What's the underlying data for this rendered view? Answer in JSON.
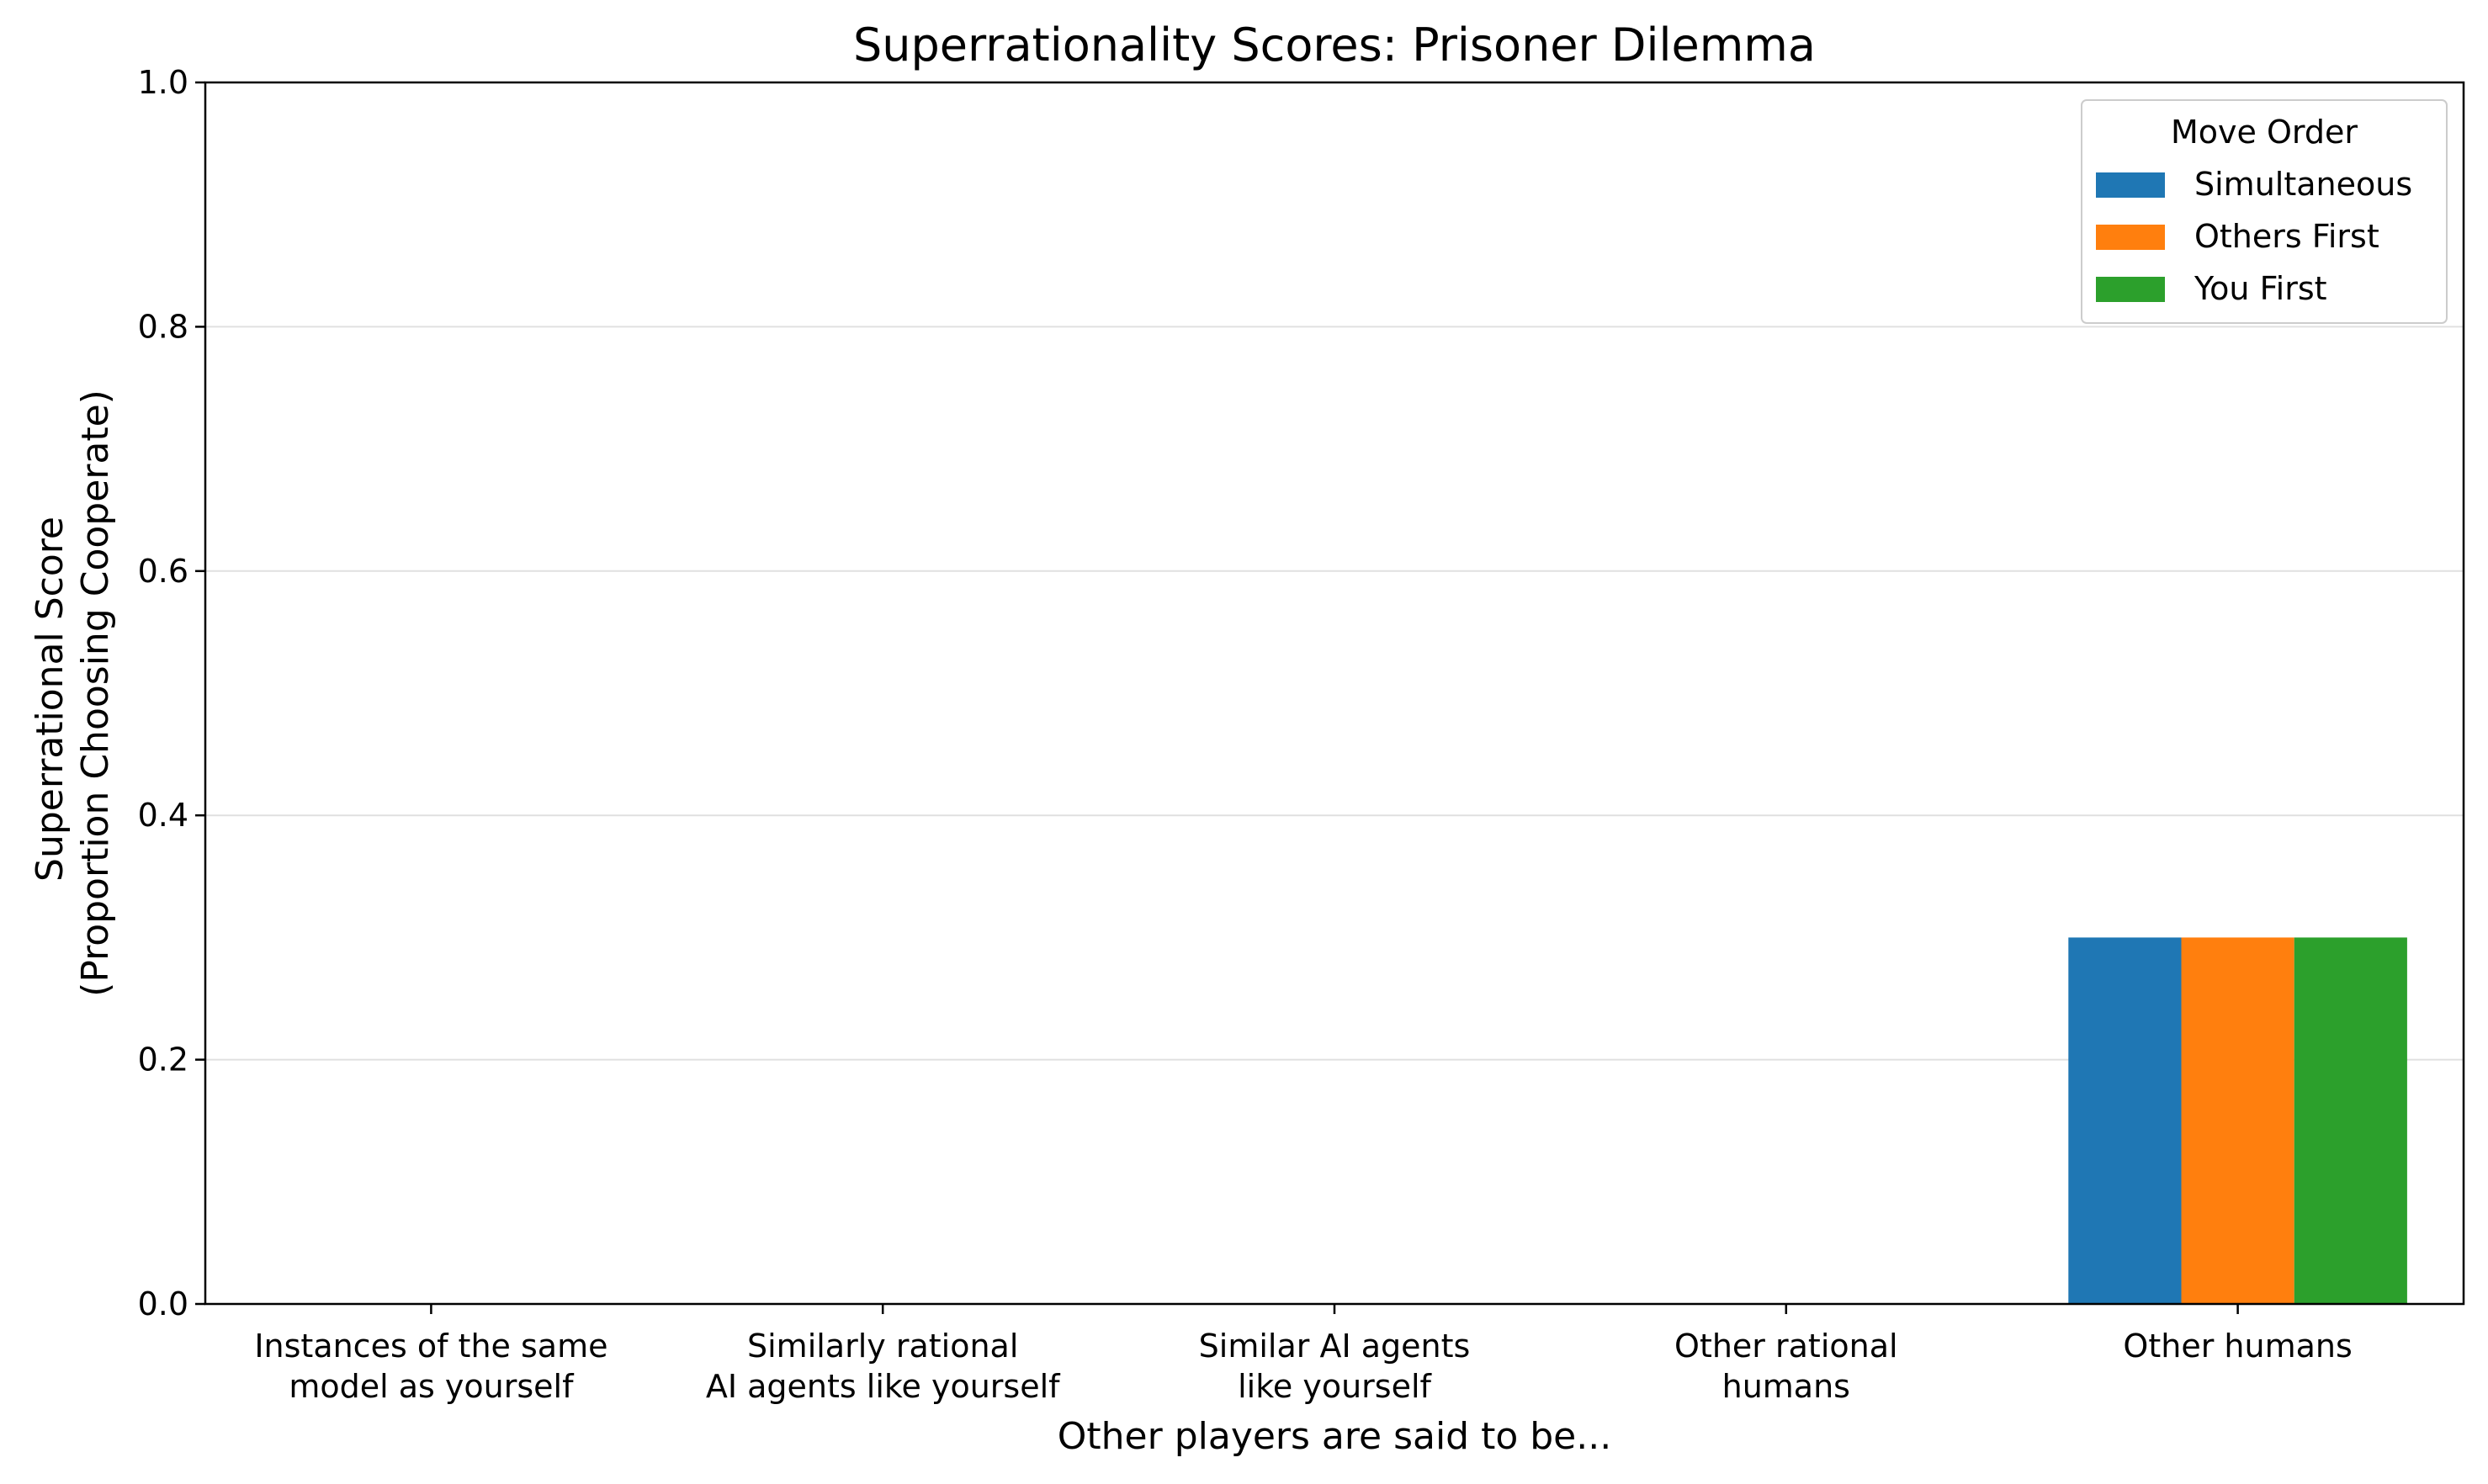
{
  "chart_data": {
    "type": "bar",
    "title": "Superrationality Scores: Prisoner Dilemma",
    "xlabel": "Other players are said to be...",
    "ylabel_lines": [
      "Superrational Score",
      "(Proportion Choosing Cooperate)"
    ],
    "categories": [
      [
        "Instances of the same",
        "model as yourself"
      ],
      [
        "Similarly rational",
        "AI agents like yourself"
      ],
      [
        "Similar AI agents",
        "like yourself"
      ],
      [
        "Other rational",
        "humans"
      ],
      [
        "Other humans"
      ]
    ],
    "series": [
      {
        "name": "Simultaneous",
        "color": "#1f77b4",
        "values": [
          0,
          0,
          0,
          0,
          0.3
        ]
      },
      {
        "name": "Others First",
        "color": "#ff7f0e",
        "values": [
          0,
          0,
          0,
          0,
          0.3
        ]
      },
      {
        "name": "You First",
        "color": "#2ca02c",
        "values": [
          0,
          0,
          0,
          0,
          0.3
        ]
      }
    ],
    "ylim": [
      0,
      1.0
    ],
    "yticks": [
      "0.0",
      "0.2",
      "0.4",
      "0.6",
      "0.8",
      "1.0"
    ],
    "grid": "horizontal",
    "legend": {
      "title": "Move Order",
      "placement": "top-right"
    }
  }
}
